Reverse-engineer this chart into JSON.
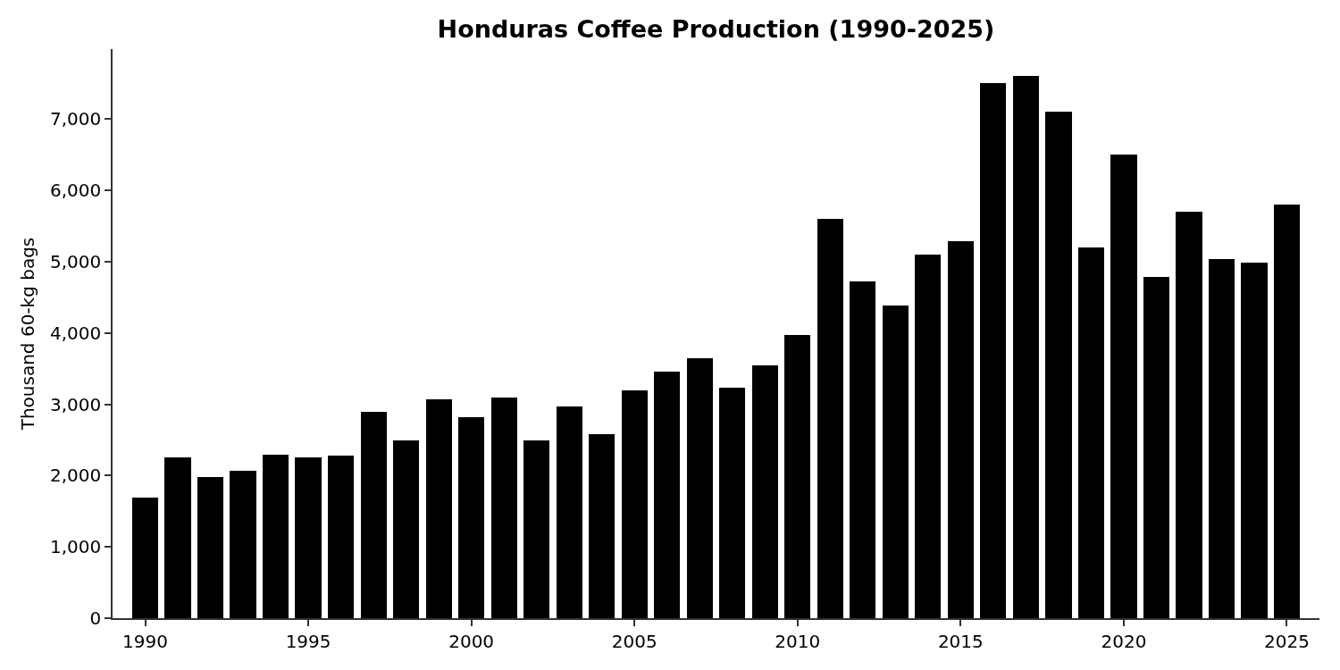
{
  "chart_data": {
    "type": "bar",
    "title": "Honduras Coffee Production (1990-2025)",
    "ylabel": "Thousand 60-kg bags",
    "x": [
      1990,
      1991,
      1992,
      1993,
      1994,
      1995,
      1996,
      1997,
      1998,
      1999,
      2000,
      2001,
      2002,
      2003,
      2004,
      2005,
      2006,
      2007,
      2008,
      2009,
      2010,
      2011,
      2012,
      2013,
      2014,
      2015,
      2016,
      2017,
      2018,
      2019,
      2020,
      2021,
      2022,
      2023,
      2024,
      2025
    ],
    "values": [
      1690,
      2250,
      1980,
      2070,
      2290,
      2250,
      2280,
      2900,
      2490,
      3070,
      2820,
      3090,
      2490,
      2970,
      2580,
      3200,
      3460,
      3640,
      3230,
      3540,
      3970,
      5600,
      4720,
      4390,
      5100,
      5290,
      7500,
      7600,
      7100,
      5200,
      6500,
      4790,
      5700,
      5040,
      4990,
      5800
    ],
    "color": "#000000",
    "xlim": [
      1989,
      2026
    ],
    "xticks": [
      1990,
      1995,
      2000,
      2005,
      2010,
      2015,
      2020,
      2025
    ],
    "ylim": [
      0,
      7980
    ],
    "yticks": [
      0,
      {
        "value": 1000,
        "label": "1,000"
      },
      {
        "value": 2000,
        "label": "2,000"
      },
      {
        "value": 3000,
        "label": "3,000"
      },
      {
        "value": 4000,
        "label": "4,000"
      },
      {
        "value": 5000,
        "label": "5,000"
      },
      {
        "value": 6000,
        "label": "6,000"
      },
      {
        "value": 7000,
        "label": "7,000"
      }
    ]
  }
}
